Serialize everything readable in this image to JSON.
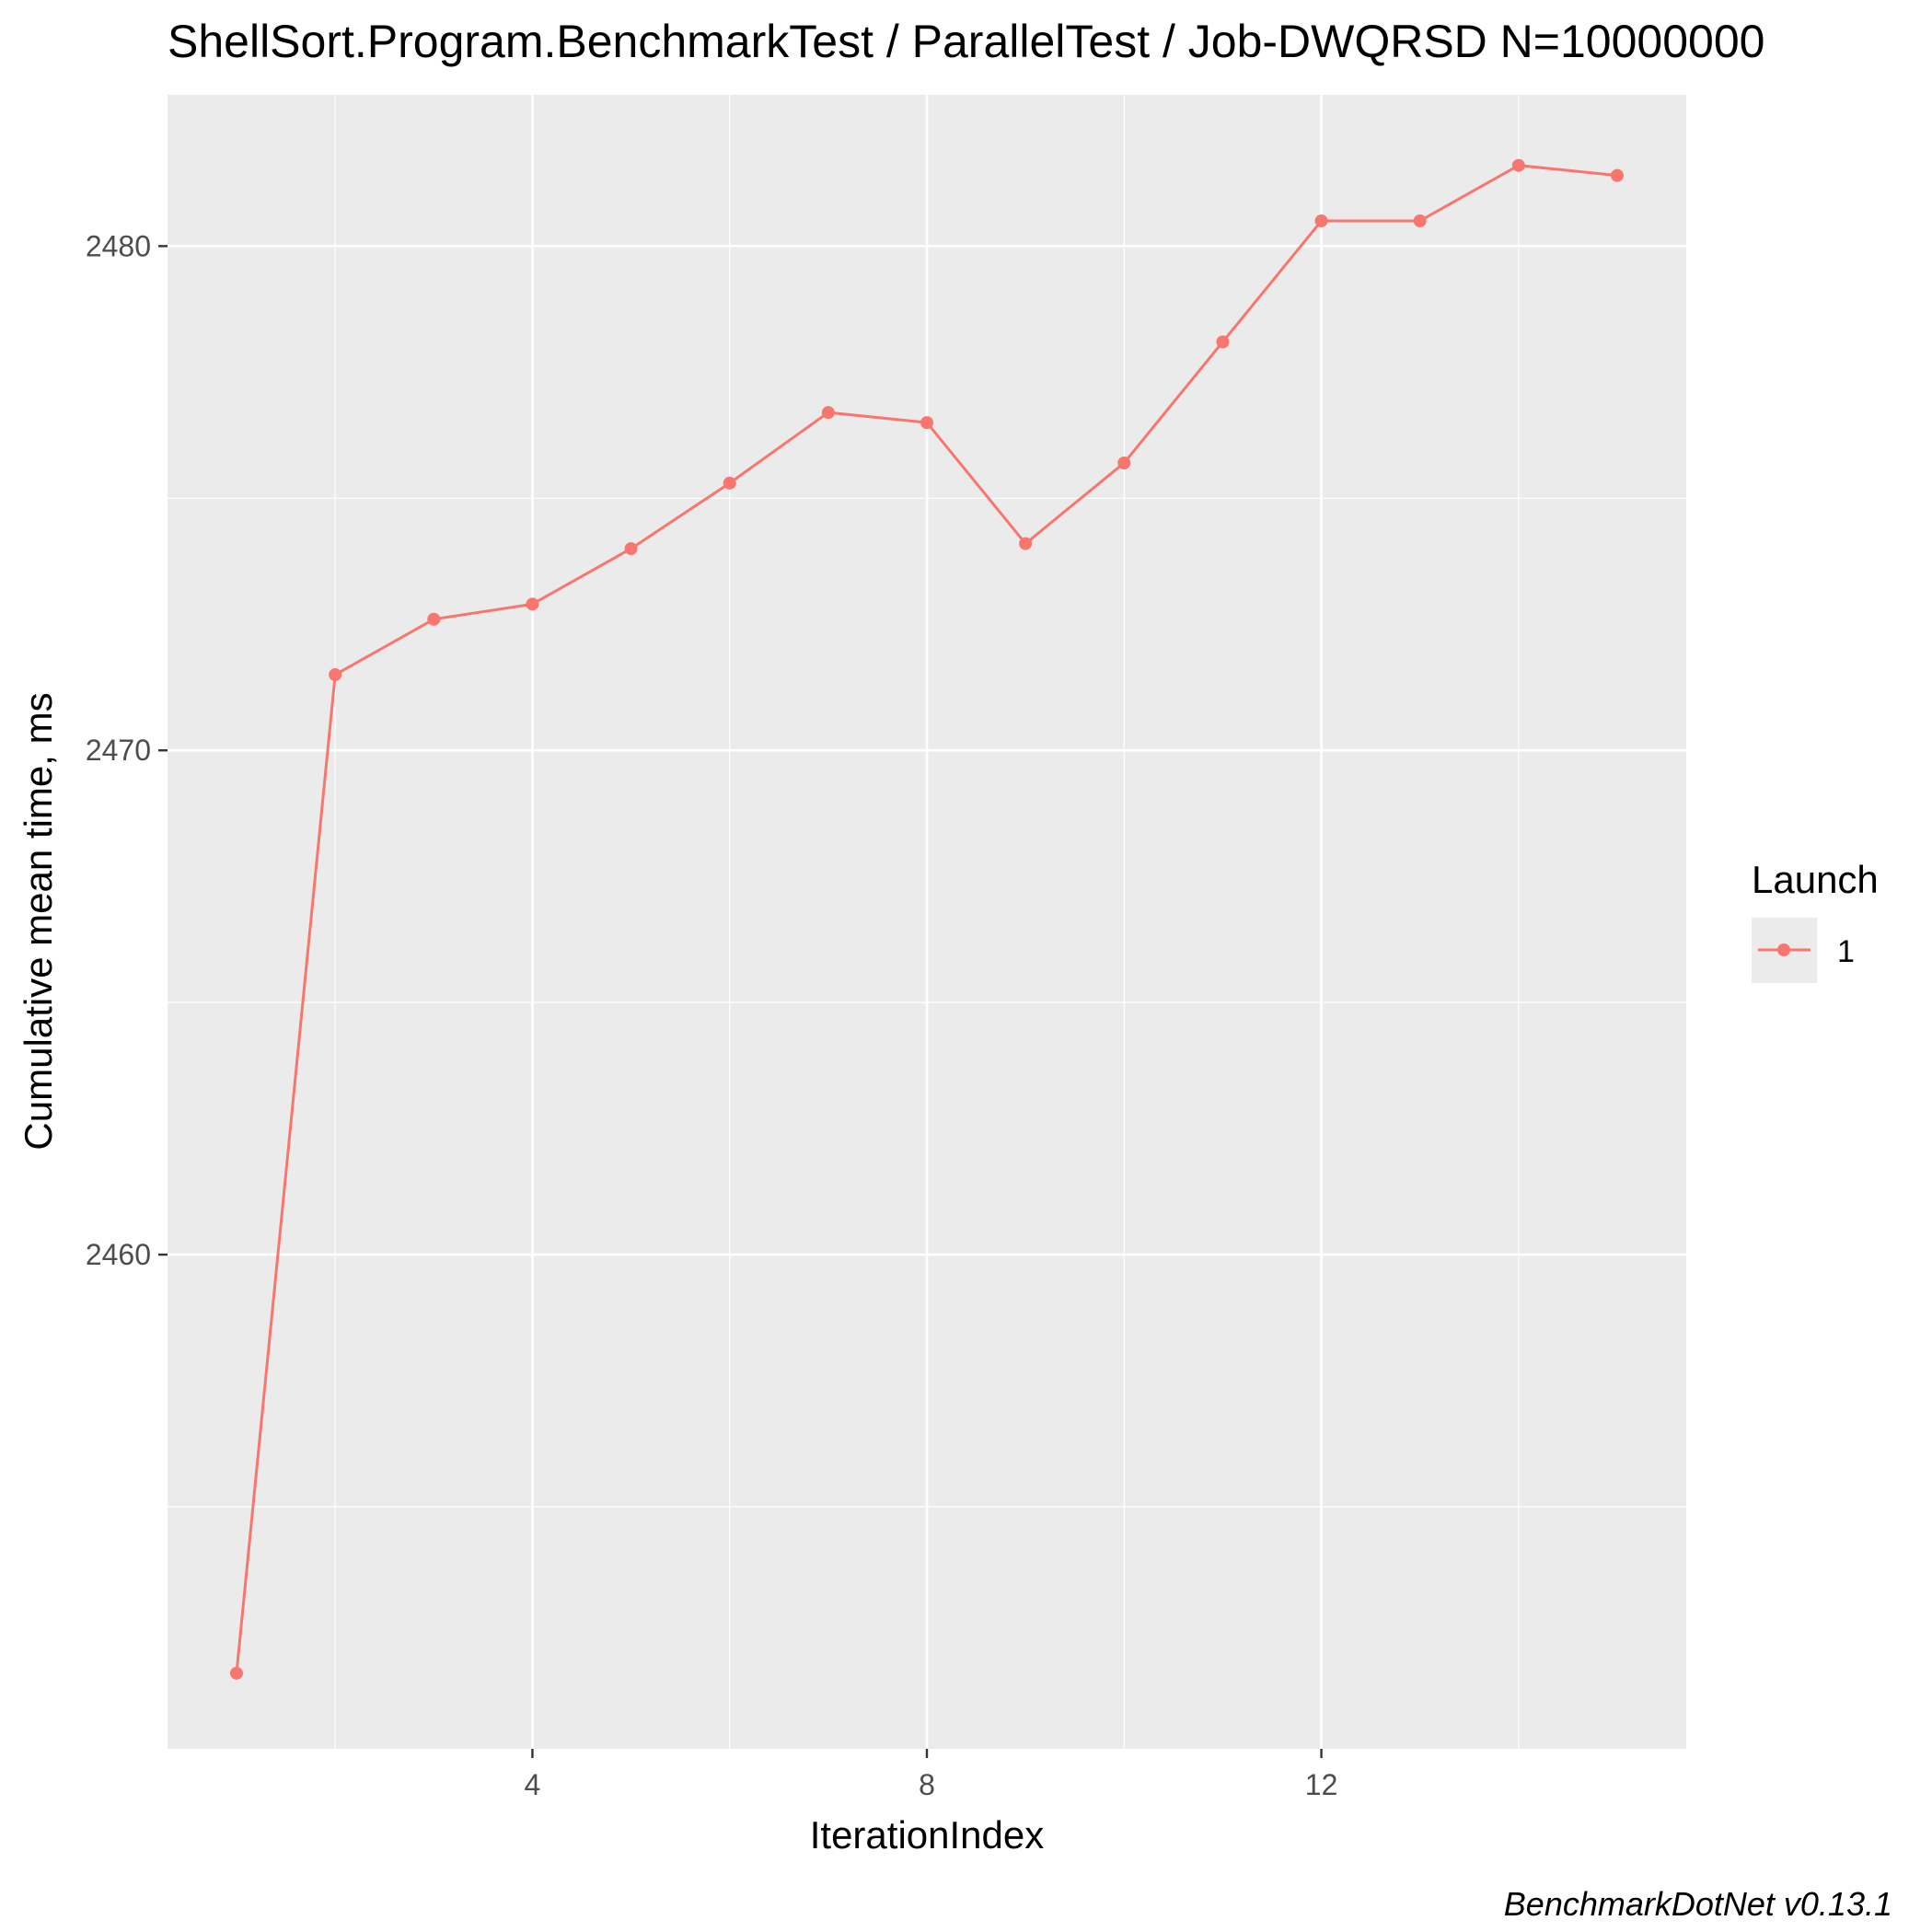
{
  "chart_data": {
    "type": "line",
    "title": "ShellSort.Program.BenchmarkTest / ParallelTest / Job-DWQRSD N=10000000",
    "xlabel": "IterationIndex",
    "ylabel": "Cumulative mean time, ms",
    "x_ticks": [
      4,
      8,
      12
    ],
    "y_ticks": [
      2460,
      2470,
      2480
    ],
    "xlim": [
      0.3,
      15.7
    ],
    "ylim": [
      2450.2,
      2483.0
    ],
    "grid": true,
    "legend": {
      "title": "Launch",
      "position": "right"
    },
    "series": [
      {
        "name": "1",
        "color": "#F8766D",
        "x": [
          1,
          2,
          3,
          4,
          5,
          6,
          7,
          8,
          9,
          10,
          11,
          12,
          13,
          14,
          15
        ],
        "y": [
          2451.7,
          2471.5,
          2472.6,
          2472.9,
          2474.0,
          2475.3,
          2476.7,
          2476.5,
          2474.1,
          2475.7,
          2478.1,
          2480.5,
          2480.5,
          2481.6,
          2481.4
        ]
      }
    ],
    "caption": "BenchmarkDotNet v0.13.1"
  },
  "colors": {
    "panel": "#EBEBEB",
    "grid_major": "#FFFFFF",
    "series": "#F8766D"
  }
}
